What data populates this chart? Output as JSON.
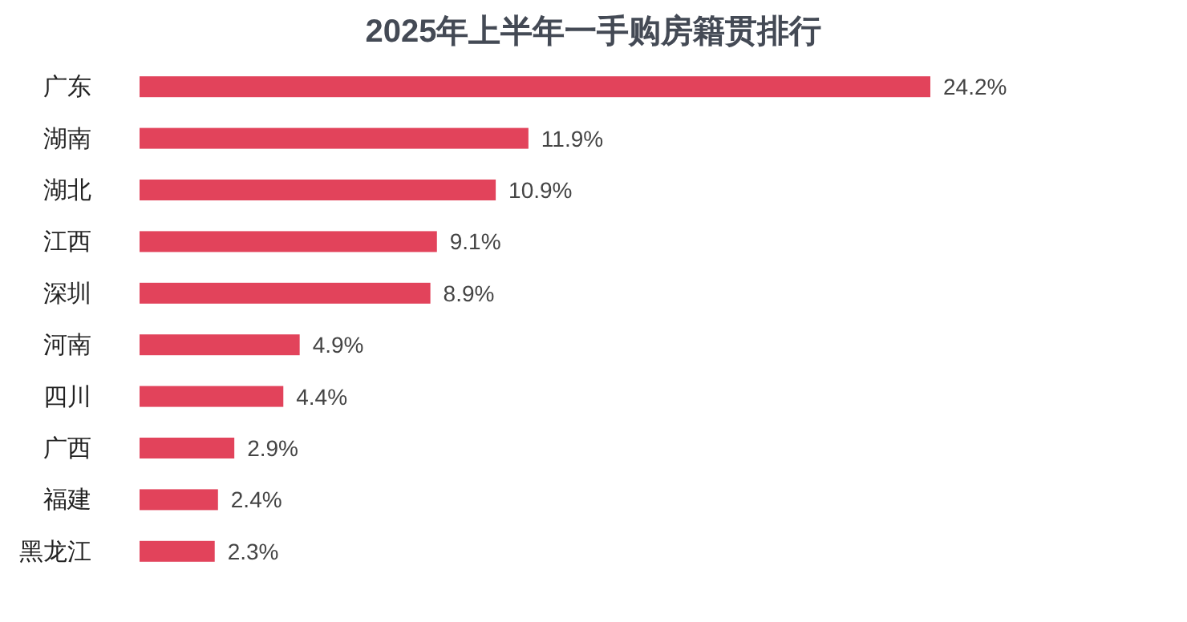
{
  "chart_data": {
    "type": "bar",
    "orientation": "horizontal",
    "title": "2025年上半年一手购房籍贯排行",
    "categories": [
      "广东",
      "湖南",
      "湖北",
      "江西",
      "深圳",
      "河南",
      "四川",
      "广西",
      "福建",
      "黑龙江"
    ],
    "values": [
      24.2,
      11.9,
      10.9,
      9.1,
      8.9,
      4.9,
      4.4,
      2.9,
      2.4,
      2.3
    ],
    "value_labels": [
      "24.2%",
      "11.9%",
      "10.9%",
      "9.1%",
      "8.9%",
      "4.9%",
      "4.4%",
      "2.9%",
      "2.4%",
      "2.3%"
    ],
    "color": "#e2435b"
  }
}
